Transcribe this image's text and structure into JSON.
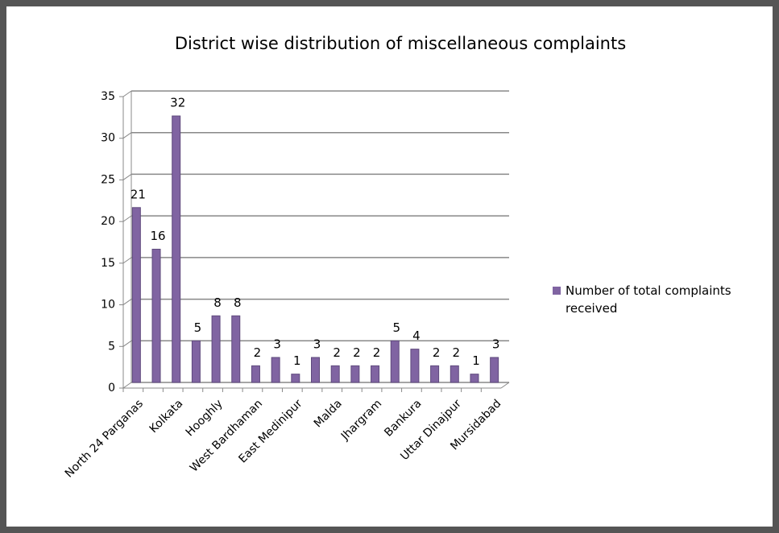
{
  "chart_data": {
    "type": "bar",
    "title": "District wise distribution of miscellaneous complaints",
    "categories": [
      "North  24 Parganas",
      null,
      "Kolkata",
      null,
      "Hooghly",
      null,
      "West Bardhaman",
      null,
      "East Medinipur",
      null,
      "Malda",
      null,
      "Jhargram",
      null,
      "Bankura",
      null,
      "Uttar Dinajpur",
      null,
      "Mursidabad"
    ],
    "series": [
      {
        "name": "Number of total complaints received",
        "color": "#8064a2",
        "values": [
          21,
          16,
          32,
          5,
          8,
          8,
          2,
          3,
          1,
          3,
          2,
          2,
          2,
          5,
          4,
          2,
          2,
          1,
          3
        ]
      }
    ],
    "ylim": [
      0,
      35
    ],
    "yticks": [
      0,
      5,
      10,
      15,
      20,
      25,
      30,
      35
    ],
    "grid": true,
    "legend": "right"
  }
}
